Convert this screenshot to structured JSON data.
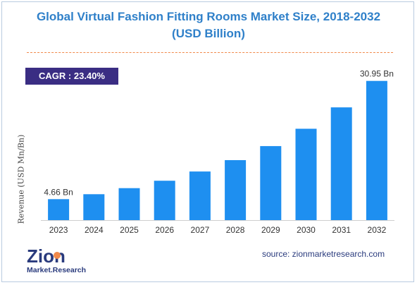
{
  "header": {
    "title_line1": "Global Virtual Fashion Fitting Rooms Market Size, 2018-2032",
    "title_line2": "(USD Billion)"
  },
  "cagr_label": "CAGR : 23.40%",
  "footer": {
    "logo_word": "Zion",
    "logo_subtext": "Market.Research",
    "source": "source: zionmarketresearch.com"
  },
  "colors": {
    "bar": "#1e8ff0",
    "title": "#2f80c9",
    "cagr_bg": "#3a2d83",
    "divider": "#f08a4b"
  },
  "chart_data": {
    "type": "bar",
    "title": "Global Virtual Fashion Fitting Rooms Market Size, 2018-2032 (USD Billion)",
    "ylabel": "Revenue (USD Mn/Bn)",
    "categories": [
      "2023",
      "2024",
      "2025",
      "2026",
      "2027",
      "2028",
      "2029",
      "2030",
      "2031",
      "2032"
    ],
    "values": [
      4.66,
      5.75,
      7.1,
      8.76,
      10.81,
      13.34,
      16.46,
      20.31,
      25.07,
      30.95
    ],
    "data_labels": [
      {
        "index": 0,
        "text": "4.66 Bn"
      },
      {
        "index": 9,
        "text": "30.95 Bn"
      }
    ],
    "ylim": [
      0,
      32
    ],
    "grid": false
  }
}
